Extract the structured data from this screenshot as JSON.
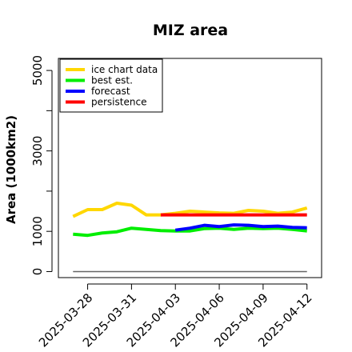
{
  "chart_data": {
    "type": "line",
    "title": "MIZ area",
    "xlabel": "",
    "ylabel": "Area (1000km2)",
    "ylim": [
      -150,
      5300
    ],
    "xlim": [
      "2025-03-26",
      "2025-04-13"
    ],
    "y_ticks": [
      0,
      1000,
      2000,
      3000,
      4000,
      5000
    ],
    "y_tick_labels": [
      "0",
      "1000",
      "",
      "3000",
      "",
      "5000"
    ],
    "x_ticks": [
      "2025-03-28",
      "2025-03-31",
      "2025-04-03",
      "2025-04-06",
      "2025-04-09",
      "2025-04-12"
    ],
    "x_tick_labels": [
      "2025-03-28",
      "2025-03-31",
      "2025-04-03",
      "2025-04-06",
      "2025-04-09",
      "2025-04-12"
    ],
    "highlight_tick": "2025-04-03",
    "highlight_color": "#228b22",
    "grid": false,
    "legend_position": "top-left",
    "series": [
      {
        "name": "ice chart data",
        "color": "#ffd700",
        "x": [
          "2025-03-27",
          "2025-03-28",
          "2025-03-29",
          "2025-03-30",
          "2025-03-31",
          "2025-04-01",
          "2025-04-02",
          "2025-04-03",
          "2025-04-04",
          "2025-04-05",
          "2025-04-06",
          "2025-04-07",
          "2025-04-08",
          "2025-04-09",
          "2025-04-10",
          "2025-04-11",
          "2025-04-12"
        ],
        "values": [
          1370,
          1540,
          1540,
          1700,
          1650,
          1410,
          1410,
          1450,
          1500,
          1480,
          1460,
          1450,
          1520,
          1500,
          1450,
          1480,
          1580
        ]
      },
      {
        "name": "best est.",
        "color": "#00ee00",
        "x": [
          "2025-03-27",
          "2025-03-28",
          "2025-03-29",
          "2025-03-30",
          "2025-03-31",
          "2025-04-01",
          "2025-04-02",
          "2025-04-03",
          "2025-04-04",
          "2025-04-05",
          "2025-04-06",
          "2025-04-07",
          "2025-04-08",
          "2025-04-09",
          "2025-04-10",
          "2025-04-11",
          "2025-04-12"
        ],
        "values": [
          930,
          900,
          960,
          990,
          1080,
          1050,
          1020,
          1010,
          1010,
          1070,
          1080,
          1050,
          1080,
          1070,
          1080,
          1050,
          1010
        ]
      },
      {
        "name": "forecast",
        "color": "#0000ff",
        "x": [
          "2025-04-03",
          "2025-04-04",
          "2025-04-05",
          "2025-04-06",
          "2025-04-07",
          "2025-04-08",
          "2025-04-09",
          "2025-04-10",
          "2025-04-11",
          "2025-04-12"
        ],
        "values": [
          1030,
          1080,
          1150,
          1120,
          1160,
          1150,
          1120,
          1130,
          1100,
          1090
        ]
      },
      {
        "name": "persistence",
        "color": "#ff0000",
        "x": [
          "2025-04-02",
          "2025-04-12"
        ],
        "values": [
          1410,
          1410
        ]
      }
    ],
    "reference_line": {
      "value": 0,
      "color": "#666666",
      "x": [
        "2025-03-27",
        "2025-04-12"
      ]
    }
  }
}
